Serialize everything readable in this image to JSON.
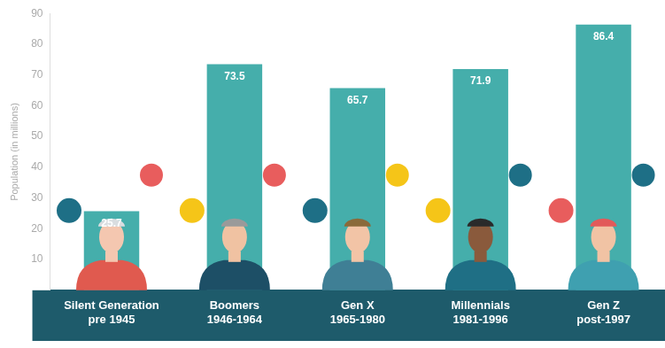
{
  "chart_data": {
    "type": "bar",
    "categories": [
      "Silent Generation\npre 1945",
      "Boomers\n1946-1964",
      "Gen X\n1965-1980",
      "Millennials\n1981-1996",
      "Gen Z\npost-1997"
    ],
    "values": [
      25.7,
      73.5,
      65.7,
      71.9,
      86.4
    ],
    "color": "#45aeab",
    "y_label": "Population (in millions)",
    "ylim": [
      0,
      90
    ],
    "yticks": [
      10,
      20,
      30,
      40,
      50,
      60,
      70,
      80,
      90
    ],
    "grid": false,
    "data_labels": true
  }
}
